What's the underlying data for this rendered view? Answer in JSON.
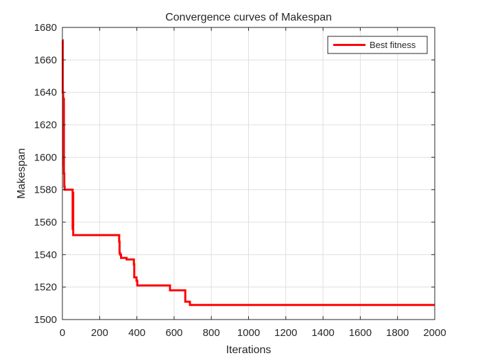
{
  "chart_data": {
    "type": "line",
    "title": "Convergence curves of Makespan",
    "xlabel": "Iterations",
    "ylabel": "Makespan",
    "xlim": [
      0,
      2000
    ],
    "ylim": [
      1500,
      1680
    ],
    "x_ticks": [
      0,
      200,
      400,
      600,
      800,
      1000,
      1200,
      1400,
      1600,
      1800,
      2000
    ],
    "y_ticks": [
      1500,
      1520,
      1540,
      1560,
      1580,
      1600,
      1620,
      1640,
      1660,
      1680
    ],
    "grid": true,
    "legend_position": "top-right",
    "series": [
      {
        "name": "Best fitness",
        "color": "#ff0000",
        "points": [
          [
            0,
            1672
          ],
          [
            2,
            1672
          ],
          [
            2,
            1640
          ],
          [
            4,
            1640
          ],
          [
            4,
            1595
          ],
          [
            6,
            1595
          ],
          [
            6,
            1636
          ],
          [
            8,
            1636
          ],
          [
            8,
            1590
          ],
          [
            10,
            1590
          ],
          [
            10,
            1582
          ],
          [
            12,
            1582
          ],
          [
            12,
            1580
          ],
          [
            55,
            1580
          ],
          [
            55,
            1556
          ],
          [
            57,
            1556
          ],
          [
            57,
            1578
          ],
          [
            58,
            1578
          ],
          [
            58,
            1552
          ],
          [
            305,
            1552
          ],
          [
            305,
            1548
          ],
          [
            307,
            1548
          ],
          [
            307,
            1541
          ],
          [
            310,
            1541
          ],
          [
            310,
            1540
          ],
          [
            315,
            1540
          ],
          [
            315,
            1538
          ],
          [
            345,
            1538
          ],
          [
            345,
            1537
          ],
          [
            382,
            1537
          ],
          [
            382,
            1537
          ],
          [
            384,
            1537
          ],
          [
            384,
            1534
          ],
          [
            386,
            1534
          ],
          [
            386,
            1526
          ],
          [
            398,
            1526
          ],
          [
            398,
            1524
          ],
          [
            402,
            1524
          ],
          [
            402,
            1521
          ],
          [
            578,
            1521
          ],
          [
            578,
            1518
          ],
          [
            660,
            1518
          ],
          [
            660,
            1511
          ],
          [
            685,
            1511
          ],
          [
            685,
            1509
          ],
          [
            2000,
            1509
          ]
        ]
      }
    ]
  }
}
